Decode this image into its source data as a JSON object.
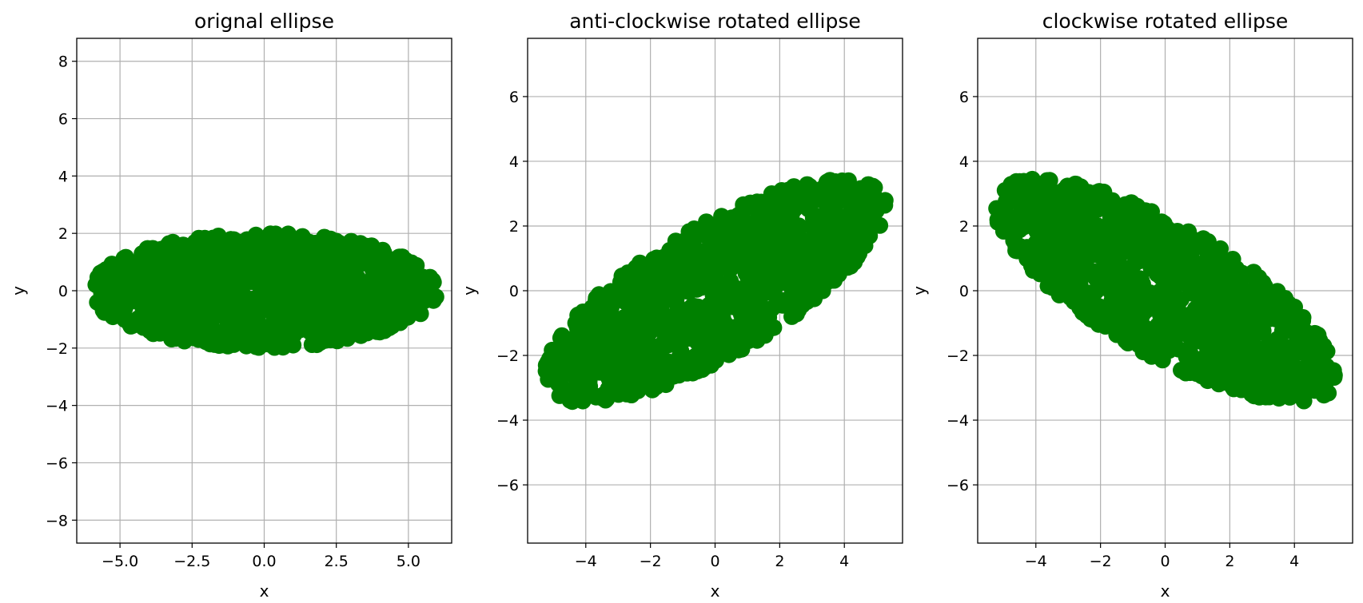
{
  "chart_data": [
    {
      "type": "scatter",
      "title": "orignal ellipse",
      "xlabel": "x",
      "ylabel": "y",
      "xlim": [
        -6.5,
        6.5
      ],
      "ylim": [
        -8.8,
        8.8
      ],
      "xticks": [
        -5.0,
        -2.5,
        0.0,
        2.5,
        5.0
      ],
      "xtick_labels": [
        "−5.0",
        "−2.5",
        "0.0",
        "2.5",
        "5.0"
      ],
      "yticks": [
        -8,
        -6,
        -4,
        -2,
        0,
        2,
        4,
        6,
        8
      ],
      "ytick_labels": [
        "−8",
        "−6",
        "−4",
        "−2",
        "0",
        "2",
        "4",
        "6",
        "8"
      ],
      "grid": true,
      "color": "#008000",
      "series": [
        {
          "shape": "ellipse",
          "center": [
            0,
            0
          ],
          "semi_axis_x": 6,
          "semi_axis_y": 2,
          "rotation_deg": 0,
          "n_points": 1000,
          "distribution": "uniform inside ellipse"
        }
      ]
    },
    {
      "type": "scatter",
      "title": "anti-clockwise rotated ellipse",
      "xlabel": "x",
      "ylabel": "y",
      "xlim": [
        -5.8,
        5.8
      ],
      "ylim": [
        -7.8,
        7.8
      ],
      "xticks": [
        -4,
        -2,
        0,
        2,
        4
      ],
      "xtick_labels": [
        "−4",
        "−2",
        "0",
        "2",
        "4"
      ],
      "yticks": [
        -6,
        -4,
        -2,
        0,
        2,
        4,
        6
      ],
      "ytick_labels": [
        "−6",
        "−4",
        "−2",
        "0",
        "2",
        "4",
        "6"
      ],
      "grid": true,
      "color": "#008000",
      "series": [
        {
          "shape": "ellipse",
          "center": [
            0,
            0
          ],
          "semi_axis_x": 6,
          "semi_axis_y": 2,
          "rotation_deg": 30,
          "n_points": 1000,
          "distribution": "uniform inside ellipse"
        }
      ]
    },
    {
      "type": "scatter",
      "title": "clockwise rotated ellipse",
      "xlabel": "x",
      "ylabel": "y",
      "xlim": [
        -5.8,
        5.8
      ],
      "ylim": [
        -7.8,
        7.8
      ],
      "xticks": [
        -4,
        -2,
        0,
        2,
        4
      ],
      "xtick_labels": [
        "−4",
        "−2",
        "0",
        "2",
        "4"
      ],
      "yticks": [
        -6,
        -4,
        -2,
        0,
        2,
        4,
        6
      ],
      "ytick_labels": [
        "−6",
        "−4",
        "−2",
        "0",
        "2",
        "4",
        "6"
      ],
      "grid": true,
      "color": "#008000",
      "series": [
        {
          "shape": "ellipse",
          "center": [
            0,
            0
          ],
          "semi_axis_x": 6,
          "semi_axis_y": 2,
          "rotation_deg": -30,
          "n_points": 1000,
          "distribution": "uniform inside ellipse"
        }
      ]
    }
  ]
}
